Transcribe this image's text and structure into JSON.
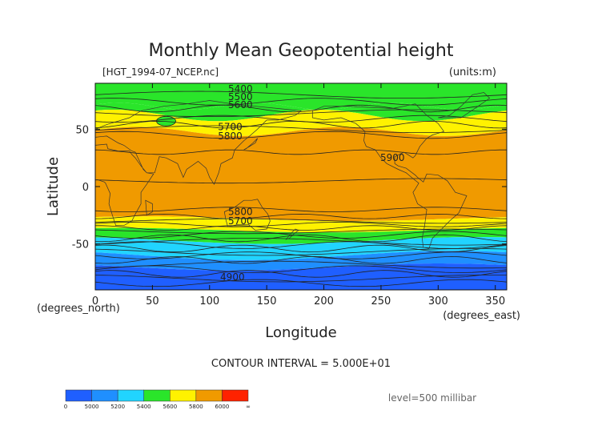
{
  "chart_data": {
    "type": "heatmap",
    "title": "Monthly Mean Geopotential height",
    "file_label": "[HGT_1994-07_NCEP.nc]",
    "units_label": "(units:m)",
    "xlabel": "Longitude",
    "ylabel": "Latitude",
    "x_unit_label": "(degrees_east)",
    "y_unit_label": "(degrees_north)",
    "xlim": [
      0,
      360
    ],
    "ylim": [
      -90,
      90
    ],
    "x_ticks": [
      "0",
      "50",
      "100",
      "150",
      "200",
      "250",
      "300",
      "350"
    ],
    "y_ticks": [
      "50",
      "0",
      "-50"
    ],
    "contour_interval_text": "CONTOUR INTERVAL = 5.000E+01",
    "level_text": "level=500 millibar",
    "contour_labels": [
      {
        "text": "5400",
        "lon": 127,
        "lat": 85
      },
      {
        "text": "5500",
        "lon": 127,
        "lat": 78
      },
      {
        "text": "5600",
        "lon": 127,
        "lat": 71
      },
      {
        "text": "5700",
        "lon": 118,
        "lat": 52
      },
      {
        "text": "5800",
        "lon": 118,
        "lat": 44
      },
      {
        "text": "5900",
        "lon": 260,
        "lat": 25
      },
      {
        "text": "5800",
        "lon": 127,
        "lat": -22
      },
      {
        "text": "5700",
        "lon": 127,
        "lat": -30
      },
      {
        "text": "4900",
        "lon": 120,
        "lat": -79
      }
    ],
    "height_bands": [
      {
        "lat": [
          70,
          90
        ],
        "level": "5300-5400"
      },
      {
        "lat": [
          62,
          70
        ],
        "level": "5400-5600"
      },
      {
        "lat": [
          48,
          62
        ],
        "level": "5600-5800"
      },
      {
        "lat": [
          -28,
          48
        ],
        "level": "5800-6000"
      },
      {
        "lat": [
          -38,
          -28
        ],
        "level": "5600-5800"
      },
      {
        "lat": [
          -47,
          -38
        ],
        "level": "5400-5600"
      },
      {
        "lat": [
          -60,
          -47
        ],
        "level": "5200-5400"
      },
      {
        "lat": [
          -90,
          -60
        ],
        "level": "4900-5200"
      }
    ],
    "colorbar": {
      "labels": [
        "0",
        "5000",
        "5200",
        "5400",
        "5600",
        "5800",
        "6000",
        "∞"
      ],
      "colors": [
        "#1f5fff",
        "#1f8fff",
        "#21d4ff",
        "#2ae52a",
        "#fff200",
        "#f09a00",
        "#ff2200"
      ]
    },
    "colors": {
      "dark_blue": "#1f5fff",
      "blue": "#1f8fff",
      "cyan": "#21d4ff",
      "green": "#2ae52a",
      "yellow": "#fff200",
      "orange": "#f09a00",
      "red": "#ff2200"
    }
  }
}
